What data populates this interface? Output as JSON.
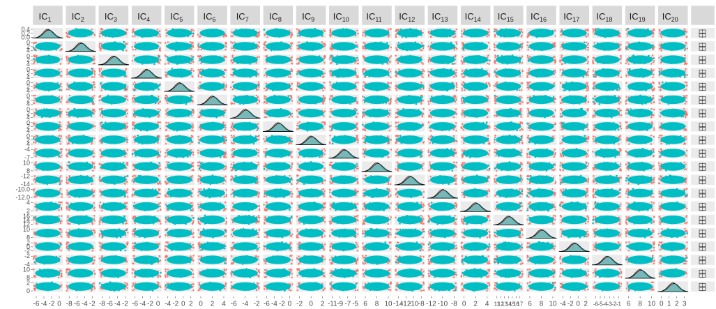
{
  "chart_data": {
    "type": "scatter",
    "title": "",
    "description_type": "scatterplot-matrix",
    "groups": [
      {
        "name": "",
        "color": "#F8766D"
      },
      {
        "name": "",
        "color": "#00BFC4"
      }
    ],
    "group_col_header": "",
    "group_col_icon": "boxplot-icon",
    "panel_background": "#EBEBEB",
    "strip_background": "#D9D9D9",
    "variables": [
      {
        "strip": "IC",
        "sub": "1",
        "ticks": [
          "-6",
          "-4",
          "-2",
          "0"
        ]
      },
      {
        "strip": "IC",
        "sub": "2",
        "ticks": [
          "-8",
          "-6",
          "-4",
          "-2"
        ]
      },
      {
        "strip": "IC",
        "sub": "3",
        "ticks": [
          "-8",
          "-6",
          "-4",
          "-2"
        ]
      },
      {
        "strip": "IC",
        "sub": "4",
        "ticks": [
          "-6",
          "-4",
          "-2",
          "0"
        ]
      },
      {
        "strip": "IC",
        "sub": "5",
        "ticks": [
          "-4",
          "-2",
          "0",
          "2"
        ]
      },
      {
        "strip": "IC",
        "sub": "6",
        "ticks": [
          "0",
          "2",
          "4"
        ]
      },
      {
        "strip": "IC",
        "sub": "7",
        "ticks": [
          "-6",
          "-4",
          "-2"
        ]
      },
      {
        "strip": "IC",
        "sub": "8",
        "ticks": [
          "-6",
          "-4",
          "-2",
          "0"
        ]
      },
      {
        "strip": "IC",
        "sub": "9",
        "ticks": [
          "-2",
          "0",
          "2"
        ]
      },
      {
        "strip": "IC",
        "sub": "10",
        "ticks": [
          "-11",
          "-9",
          "-7",
          "-5"
        ]
      },
      {
        "strip": "IC",
        "sub": "11",
        "ticks": [
          "6",
          "8",
          "10"
        ]
      },
      {
        "strip": "IC",
        "sub": "12",
        "ticks": [
          "-14",
          "-12",
          "-10",
          "-8"
        ]
      },
      {
        "strip": "IC",
        "sub": "13",
        "ticks": [
          "-12",
          "-10",
          "-8"
        ]
      },
      {
        "strip": "IC",
        "sub": "14",
        "ticks": [
          "0",
          "2",
          "4"
        ]
      },
      {
        "strip": "IC",
        "sub": "15",
        "ticks": [
          "11",
          "12",
          "13",
          "14",
          "15",
          "16",
          "17"
        ]
      },
      {
        "strip": "IC",
        "sub": "16",
        "ticks": [
          "6",
          "8",
          "10"
        ]
      },
      {
        "strip": "IC",
        "sub": "17",
        "ticks": [
          "-4",
          "-2",
          "0",
          "2"
        ]
      },
      {
        "strip": "IC",
        "sub": "18",
        "ticks": [
          "-6",
          "-5",
          "-4",
          "-3",
          "-2",
          "-1"
        ]
      },
      {
        "strip": "IC",
        "sub": "19",
        "ticks": [
          "6",
          "8",
          "10"
        ]
      },
      {
        "strip": "IC",
        "sub": "20",
        "ticks": [
          "0",
          "1",
          "2",
          "3"
        ]
      }
    ],
    "row_tick_labels": [
      [
        "0.4",
        "0.2",
        "0.0"
      ],
      [
        "0",
        "2",
        "4"
      ],
      [
        "0",
        "2",
        "4"
      ],
      [
        "0",
        "2",
        "4"
      ],
      [
        "0",
        "2",
        "4"
      ],
      [
        "0",
        "2",
        "4"
      ],
      [
        "0",
        "2",
        "4"
      ],
      [
        "0",
        "2",
        "4"
      ],
      [
        "0",
        "2",
        "4"
      ],
      [
        "-4",
        "-7"
      ],
      [
        "10",
        "8"
      ],
      [
        "-12",
        "-14"
      ],
      [
        "-10.0",
        "-12.0"
      ],
      [
        "4",
        "2"
      ],
      [
        "16",
        "14",
        "12"
      ],
      [
        "10",
        "8"
      ],
      [
        "2",
        "0",
        "-2"
      ],
      [
        "-2",
        "-4"
      ],
      [
        "10",
        "8"
      ],
      [
        "2",
        "0"
      ]
    ]
  }
}
